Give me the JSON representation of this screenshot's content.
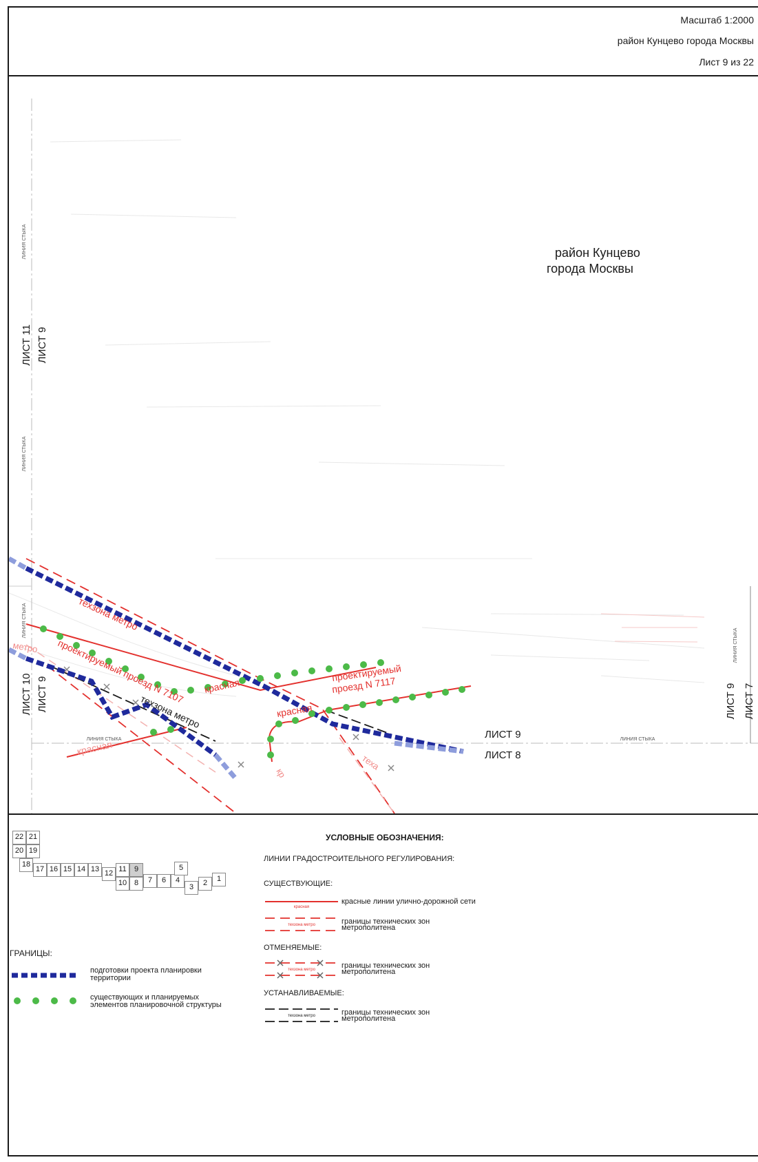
{
  "title_block": {
    "scale": "Масштаб 1:2000",
    "district": "район Кунцево города Москвы",
    "sheet": "Лист 9 из 22"
  },
  "map": {
    "district_label_line1": "район Кунцево",
    "district_label_line2": "города Москвы",
    "join_line_label": "ЛИНИЯ СТЫКА",
    "sheet_labels": {
      "left_upper_outer": "ЛИСТ 11",
      "left_upper_inner": "ЛИСТ 9",
      "left_lower_outer": "ЛИСТ 10",
      "left_lower_inner": "ЛИСТ 9",
      "right_inner": "ЛИСТ 9",
      "right_outer": "ЛИСТ 7",
      "bottom_upper": "ЛИСТ 9",
      "bottom_lower": "ЛИСТ 8"
    },
    "line_labels": {
      "techzone_metro": "техзона метро",
      "metro_fragment": "метро",
      "red_line": "красная",
      "red_line_2": "красная",
      "red_line_3": "красная",
      "projected_7107": "проектируемый проезд N 7107",
      "projected_7117_line1": "проектируемый",
      "projected_7117_line2": "проезд N 7117",
      "techzone_metro_black": "техзона метро",
      "teh_fragment": "теха",
      "k_fragment": "кр"
    },
    "colors": {
      "red_line": "#e3302d",
      "planning_boundary": "#1f2a9c",
      "structure_dots": "#4cba48",
      "metro_black": "#1a1a1a"
    }
  },
  "legend": {
    "title": "УСЛОВНЫЕ ОБОЗНАЧЕНИЯ:",
    "regulation_lines": "ЛИНИИ ГРАДОСТРОИТЕЛЬНОГО РЕГУЛИРОВАНИЯ:",
    "existing": "СУЩЕСТВУЮЩИЕ:",
    "red_lines_sample": "красная",
    "red_lines_desc": "красные линии улично-дорожной сети",
    "techzone_sample": "техзона метро",
    "techzone_desc_line1": "границы технических зон",
    "techzone_desc_line2": "метрополитена",
    "cancelled": "ОТМЕНЯЕМЫЕ:",
    "cancelled_sample": "техзона метро",
    "cancelled_desc_line1": "границы технических зон",
    "cancelled_desc_line2": "метрополитена",
    "established": "УСТАНАВЛИВАЕМЫЕ:",
    "established_sample": "техзона метро",
    "established_desc_line1": "границы технических зон",
    "established_desc_line2": "метрополитена",
    "boundaries": "ГРАНИЦЫ:",
    "planning_desc_line1": "подготовки проекта планировки",
    "planning_desc_line2": "территории",
    "structure_desc_line1": "существующих и планируемых",
    "structure_desc_line2": "элементов планировочной структуры",
    "sheet_index": [
      "22",
      "21",
      "20",
      "19",
      "18",
      "17",
      "16",
      "15",
      "14",
      "13",
      "12",
      "11",
      "9",
      "10",
      "8",
      "7",
      "6",
      "4",
      "5",
      "3",
      "2",
      "1"
    ],
    "current_sheet": "9"
  }
}
